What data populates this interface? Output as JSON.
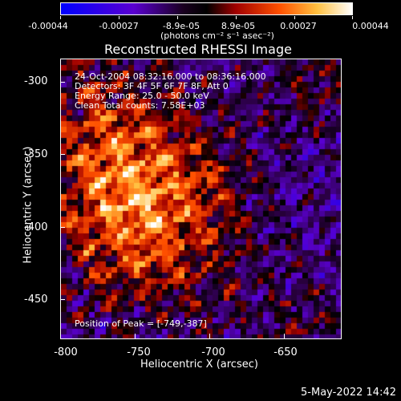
{
  "colorbar": {
    "labels": [
      "-0.00044",
      "-0.00027",
      "-8.9e-05",
      "8.9e-05",
      "0.00027",
      "0.00044"
    ],
    "units": "(photons cm⁻² s⁻¹ asec⁻²)",
    "colors": [
      "#0000ff",
      "#6a00c0",
      "#000000",
      "#c00000",
      "#ff8000",
      "#ffff80",
      "#ffffff"
    ]
  },
  "title": "Reconstructed RHESSI Image",
  "overlay": {
    "time_range": "24-Oct-2004 08:32:16.000 to 08:36:16.000",
    "detectors": "Detectors: 3F 4F 5F 6F 7F 8F, Att 0",
    "energy": "Energy Range: 25.0 - 50.0 keV",
    "method": "Clean     Total counts: 7.58E+03",
    "peak": "Position of Peak = [-749,-387]"
  },
  "axes": {
    "xlabel": "Heliocentric X (arcsec)",
    "ylabel": "Heliocentric Y (arcsec)",
    "xticks": [
      "-800",
      "-750",
      "-700",
      "-650"
    ],
    "yticks": [
      "-300",
      "-350",
      "-400",
      "-450"
    ]
  },
  "chart_data": {
    "type": "heatmap",
    "title": "Reconstructed RHESSI Image",
    "xlabel": "Heliocentric X (arcsec)",
    "ylabel": "Heliocentric Y (arcsec)",
    "xlim": [
      -800,
      -612
    ],
    "ylim": [
      -477,
      -290
    ],
    "zlim": [
      -0.00044,
      0.00044
    ],
    "peak": [
      -749,
      -387
    ],
    "colormap": [
      "#0000ff",
      "#6a00c0",
      "#000000",
      "#c00000",
      "#ff8000",
      "#ffff80",
      "#ffffff"
    ]
  },
  "footer": {
    "date": "5-May-2022 14:42"
  }
}
